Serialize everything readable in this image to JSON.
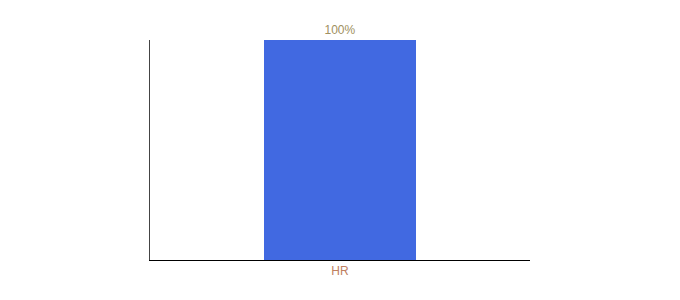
{
  "chart_data": {
    "type": "bar",
    "categories": [
      "HR"
    ],
    "values": [
      100
    ],
    "value_labels": [
      "100%"
    ],
    "data_labels": true,
    "color": "#4169e1",
    "ylim": [
      0,
      100
    ],
    "tick_labels": "x"
  }
}
